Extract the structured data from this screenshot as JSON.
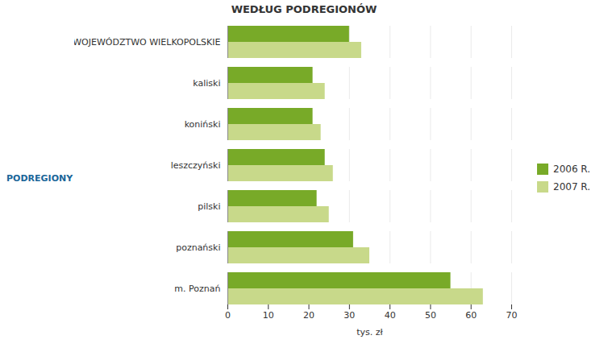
{
  "chart_data": {
    "type": "bar",
    "orientation": "horizontal",
    "title": "WEDŁUG PODREGIONÓW",
    "xlabel": "tys. zł",
    "ylabel": "PODREGIONY",
    "categories": [
      "WOJEWÓDZTWO WIELKOPOLSKIE",
      "kaliski",
      "koniński",
      "leszczyński",
      "pilski",
      "poznański",
      "m. Poznań"
    ],
    "series": [
      {
        "name": "2006 R.",
        "color": "#78aa28",
        "values": [
          30,
          21,
          21,
          24,
          22,
          31,
          55
        ]
      },
      {
        "name": "2007 R.",
        "color": "#c8d98a",
        "values": [
          33,
          24,
          23,
          26,
          25,
          35,
          63
        ]
      }
    ],
    "xlim": [
      0,
      70
    ],
    "xticks": [
      0,
      10,
      20,
      30,
      40,
      50,
      60,
      70
    ],
    "grid": true,
    "legend": "right"
  }
}
